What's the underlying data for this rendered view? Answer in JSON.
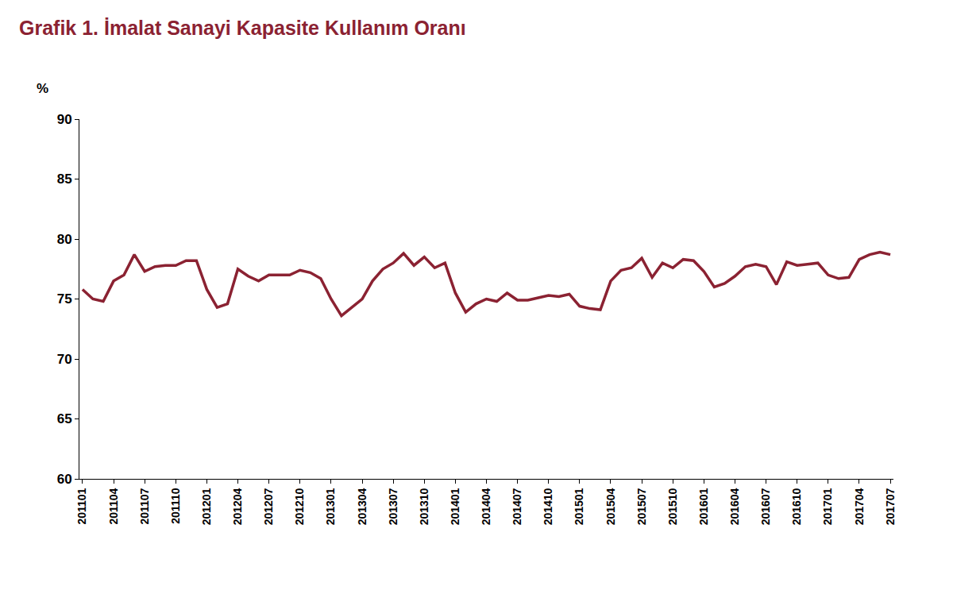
{
  "chart_data": {
    "type": "line",
    "title": "Grafik 1. İmalat Sanayi Kapasite Kullanım Oranı",
    "y_label": "%",
    "categories": [
      "201101",
      null,
      null,
      "201104",
      null,
      null,
      "201107",
      null,
      null,
      "201110",
      null,
      null,
      "201201",
      null,
      null,
      "201204",
      null,
      null,
      "201207",
      null,
      null,
      "201210",
      null,
      null,
      "201301",
      null,
      null,
      "201304",
      null,
      null,
      "201307",
      null,
      null,
      "201310",
      null,
      null,
      "201401",
      null,
      null,
      "201404",
      null,
      null,
      "201407",
      null,
      null,
      "201410",
      null,
      null,
      "201501",
      null,
      null,
      "201504",
      null,
      null,
      "201507",
      null,
      null,
      "201510",
      null,
      null,
      "201601",
      null,
      null,
      "201604",
      null,
      null,
      "201607",
      null,
      null,
      "201610",
      null,
      null,
      "201701",
      null,
      null,
      "201704",
      null,
      null,
      "201707"
    ],
    "values": [
      75.8,
      75.0,
      74.8,
      76.5,
      77.0,
      78.7,
      77.3,
      77.7,
      77.8,
      77.8,
      78.2,
      78.2,
      75.8,
      74.3,
      74.6,
      77.5,
      76.9,
      76.5,
      77.0,
      77.0,
      77.0,
      77.4,
      77.2,
      76.7,
      75.0,
      73.6,
      74.3,
      75.0,
      76.5,
      77.5,
      78.0,
      78.8,
      77.8,
      78.5,
      77.6,
      78.0,
      75.5,
      73.9,
      74.6,
      75.0,
      74.8,
      75.5,
      74.9,
      74.9,
      75.1,
      75.3,
      75.2,
      75.4,
      74.4,
      74.2,
      74.1,
      76.5,
      77.4,
      77.6,
      78.4,
      76.8,
      78.0,
      77.6,
      78.3,
      78.2,
      77.3,
      76.0,
      76.3,
      76.9,
      77.7,
      77.9,
      77.7,
      76.2,
      78.1,
      77.8,
      77.9,
      78.0,
      77.0,
      76.7,
      76.8,
      78.3,
      78.7,
      78.9,
      78.7
    ],
    "color": "#8b2232",
    "ylim": [
      60,
      90
    ],
    "yticks": [
      60,
      65,
      70,
      75,
      80,
      85,
      90
    ],
    "grid": false
  }
}
